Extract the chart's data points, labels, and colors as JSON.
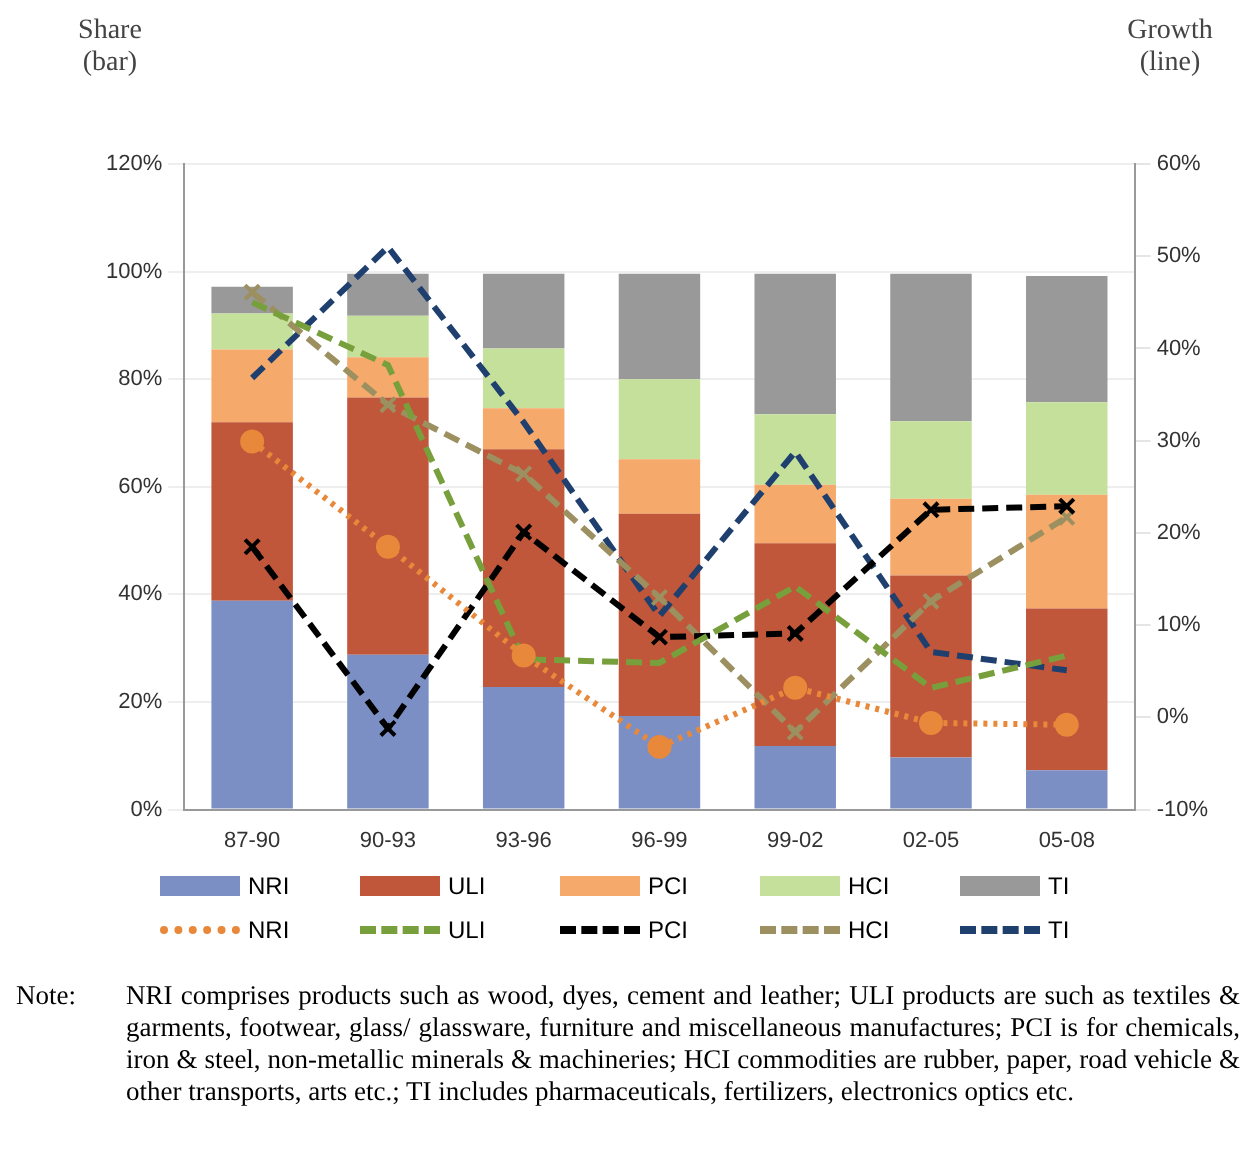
{
  "chart_data": {
    "type": "bar",
    "stacked": true,
    "ylabel": "Share (bar)",
    "y2label": "Growth (line)",
    "categories": [
      "87-90",
      "90-93",
      "93-96",
      "96-99",
      "99-02",
      "02-05",
      "05-08"
    ],
    "series": [
      {
        "name": "NRI",
        "color": "#7b8fc4",
        "values": [
          38.8,
          28.8,
          22.8,
          17.4,
          11.8,
          9.7,
          7.3
        ]
      },
      {
        "name": "ULI",
        "color": "#c0563a",
        "values": [
          33.2,
          47.8,
          44.2,
          37.6,
          37.7,
          33.8,
          30.1
        ]
      },
      {
        "name": "PCI",
        "color": "#f5a96b",
        "values": [
          13.5,
          7.5,
          7.6,
          10.1,
          10.9,
          14.3,
          21.1
        ]
      },
      {
        "name": "HCI",
        "color": "#c4e09b",
        "values": [
          6.7,
          7.7,
          11.1,
          14.9,
          13.1,
          14.4,
          17.2
        ]
      },
      {
        "name": "TI",
        "color": "#999999",
        "values": [
          5.0,
          7.8,
          13.9,
          19.6,
          26.1,
          27.4,
          23.5
        ]
      },
      {
        "name": "NRI",
        "type": "line",
        "axis": "y2",
        "color": "#e8883a",
        "line_style": "dotted",
        "marker": "circle",
        "values": [
          29.9,
          18.5,
          6.7,
          -3.2,
          3.2,
          -0.6,
          -0.8
        ]
      },
      {
        "name": "ULI",
        "type": "line",
        "axis": "y2",
        "color": "#77a03c",
        "line_style": "dashed",
        "marker": "none",
        "values": [
          45,
          38.2,
          6.3,
          5.9,
          14.2,
          3.2,
          6.7
        ]
      },
      {
        "name": "PCI",
        "type": "line",
        "axis": "y2",
        "color": "#000000",
        "line_style": "dashed",
        "marker": "cross",
        "values": [
          18.5,
          -1.2,
          20.1,
          8.7,
          9.1,
          22.5,
          22.9
        ]
      },
      {
        "name": "HCI",
        "type": "line",
        "axis": "y2",
        "color": "#9c9060",
        "line_style": "dashed",
        "marker": "cross",
        "values": [
          46.1,
          33.9,
          26.4,
          13.0,
          -1.6,
          12.6,
          21.7
        ]
      },
      {
        "name": "TI",
        "type": "line",
        "axis": "y2",
        "color": "#1f3f6e",
        "line_style": "dashed",
        "marker": "none",
        "values": [
          36.8,
          51.0,
          32.0,
          11.0,
          28.8,
          7.1,
          5.1
        ]
      }
    ],
    "ylim": [
      0,
      120
    ],
    "yticks": [
      {
        "value": 0,
        "label": "0%"
      },
      {
        "value": 20,
        "label": "20%"
      },
      {
        "value": 40,
        "label": "40%"
      },
      {
        "value": 60,
        "label": "60%"
      },
      {
        "value": 80,
        "label": "80%"
      },
      {
        "value": 100,
        "label": "100%"
      },
      {
        "value": 120,
        "label": "120%"
      }
    ],
    "y2lim": [
      -10,
      60
    ],
    "y2ticks": [
      {
        "value": -10,
        "label": "-10%"
      },
      {
        "value": 0,
        "label": "0%"
      },
      {
        "value": 10,
        "label": "10%"
      },
      {
        "value": 20,
        "label": "20%"
      },
      {
        "value": 30,
        "label": "30%"
      },
      {
        "value": 40,
        "label": "40%"
      },
      {
        "value": 50,
        "label": "50%"
      },
      {
        "value": 60,
        "label": "60%"
      }
    ],
    "grid": "y",
    "legend": "bottom",
    "annotations": [
      "Note:",
      "NRI comprises products such as wood, dyes, cement and leather; ULI products are such as textiles & garments, footwear, glass/ glassware, furniture and miscellaneous manufactures; PCI is for chemicals, iron & steel, non-metallic minerals & machineries; HCI commodities are rubber, paper, road vehicle & other transports, arts etc.; TI includes pharmaceuticals, fertilizers, electronics optics etc."
    ]
  }
}
